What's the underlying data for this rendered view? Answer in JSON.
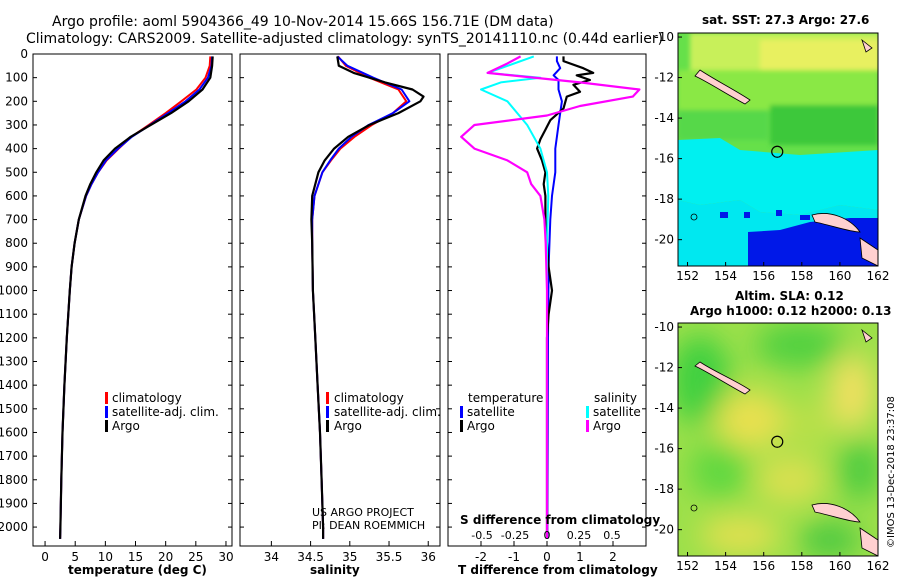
{
  "header": {
    "title_line1": "Argo profile: aoml 5904366_49 10-Nov-2014 15.66S 156.71E (DM data)",
    "title_line2": "Climatology: CARS2009. Satellite-adjusted climatology: synTS_20141110.nc (0.44d earlier)"
  },
  "credits": {
    "project": "US ARGO PROJECT",
    "pi": "PI: DEAN ROEMMICH",
    "stamp": "©IMOS 13-Dec-2018 23:37:08"
  },
  "colors": {
    "climatology": "#ff0000",
    "satellite": "#0000ff",
    "argo": "#000000",
    "argo_salinity": "#ff00ff",
    "satellite_salinity": "#00ffff"
  },
  "chart_data": [
    {
      "type": "line",
      "id": "temperature",
      "xlabel": "temperature (deg C)",
      "ylabel": "",
      "xlim": [
        -2,
        31
      ],
      "ylim": [
        2080,
        0
      ],
      "x_ticks": [
        0,
        5,
        10,
        15,
        20,
        25,
        30
      ],
      "y_ticks": [
        0,
        100,
        200,
        300,
        400,
        500,
        600,
        700,
        800,
        900,
        1000,
        1100,
        1200,
        1300,
        1400,
        1500,
        1600,
        1700,
        1800,
        1900,
        2000
      ],
      "legend": [
        "climatology",
        "satellite-adj. clim.",
        "Argo"
      ],
      "series": [
        {
          "name": "climatology",
          "depth": [
            10,
            50,
            100,
            150,
            200,
            250,
            300,
            350,
            400,
            450,
            500,
            550,
            600,
            700,
            800,
            900,
            1000,
            1200,
            1400,
            1600,
            1800,
            2000,
            2050
          ],
          "values": [
            27.4,
            27.3,
            26.6,
            25.1,
            22.6,
            20.0,
            17.2,
            14.3,
            12.2,
            10.2,
            8.8,
            7.7,
            6.8,
            5.6,
            4.9,
            4.4,
            4.1,
            3.6,
            3.2,
            2.9,
            2.7,
            2.55,
            2.5
          ]
        },
        {
          "name": "satellite-adj. clim.",
          "depth": [
            10,
            50,
            100,
            150,
            200,
            250,
            300,
            350,
            400,
            450,
            500,
            550,
            600,
            700,
            800,
            900,
            1000,
            1200,
            1400,
            1600,
            1800,
            2000,
            2050
          ],
          "values": [
            27.7,
            27.6,
            27.0,
            25.6,
            23.3,
            20.4,
            17.4,
            14.4,
            12.1,
            10.1,
            8.8,
            7.7,
            6.8,
            5.6,
            4.9,
            4.4,
            4.1,
            3.6,
            3.2,
            2.9,
            2.7,
            2.55,
            2.5
          ]
        },
        {
          "name": "Argo",
          "depth": [
            10,
            50,
            100,
            150,
            200,
            250,
            300,
            350,
            400,
            450,
            500,
            550,
            600,
            700,
            800,
            900,
            1000,
            1200,
            1400,
            1600,
            1800,
            2000,
            2050
          ],
          "values": [
            27.8,
            27.7,
            27.4,
            26.1,
            23.8,
            20.9,
            17.5,
            14.2,
            11.6,
            9.7,
            8.5,
            7.5,
            6.7,
            5.6,
            4.9,
            4.4,
            4.1,
            3.6,
            3.2,
            2.9,
            2.7,
            2.55,
            2.5
          ]
        }
      ]
    },
    {
      "type": "line",
      "id": "salinity",
      "xlabel": "salinity",
      "ylabel": "",
      "xlim": [
        33.6,
        36.15
      ],
      "ylim": [
        2080,
        0
      ],
      "x_ticks": [
        34,
        34.5,
        35,
        35.5,
        36
      ],
      "legend": [
        "climatology",
        "satellite-adj. clim.",
        "Argo"
      ],
      "series": [
        {
          "name": "climatology",
          "depth": [
            10,
            50,
            100,
            150,
            200,
            250,
            300,
            350,
            400,
            450,
            500,
            600,
            700,
            800,
            1000,
            1200,
            1400,
            1600,
            1800,
            2000,
            2050
          ],
          "values": [
            34.85,
            34.95,
            35.25,
            35.62,
            35.72,
            35.55,
            35.28,
            35.06,
            34.88,
            34.76,
            34.65,
            34.55,
            34.52,
            34.52,
            34.53,
            34.56,
            34.59,
            34.62,
            34.64,
            34.66,
            34.66
          ]
        },
        {
          "name": "satellite-adj. clim.",
          "depth": [
            10,
            50,
            100,
            150,
            200,
            250,
            300,
            350,
            400,
            450,
            500,
            600,
            700,
            800,
            1000,
            1200,
            1400,
            1600,
            1800,
            2000,
            2050
          ],
          "values": [
            34.84,
            34.97,
            35.3,
            35.66,
            35.76,
            35.55,
            35.24,
            35.02,
            34.86,
            34.75,
            34.65,
            34.55,
            34.52,
            34.52,
            34.53,
            34.56,
            34.59,
            34.62,
            34.64,
            34.66,
            34.66
          ]
        },
        {
          "name": "Argo",
          "depth": [
            10,
            50,
            80,
            120,
            150,
            180,
            200,
            250,
            300,
            350,
            400,
            450,
            500,
            600,
            700,
            800,
            1000,
            1200,
            1400,
            1600,
            1800,
            2000,
            2050
          ],
          "values": [
            34.84,
            34.86,
            35.05,
            35.45,
            35.8,
            35.94,
            35.9,
            35.62,
            35.25,
            34.98,
            34.8,
            34.68,
            34.6,
            34.52,
            34.51,
            34.52,
            34.53,
            34.56,
            34.59,
            34.62,
            34.64,
            34.66,
            34.66
          ]
        }
      ]
    },
    {
      "type": "line",
      "id": "difference",
      "xlabel": "T difference from climatology",
      "secondary_xlabel": "S difference from climatology",
      "xlim": [
        -3,
        3
      ],
      "ylim": [
        2080,
        0
      ],
      "x_ticks": [
        -2,
        -1,
        0,
        1,
        2
      ],
      "secondary_ticks": [
        "-0.5",
        "-0.25",
        "0",
        "0.25",
        "0.5"
      ],
      "legend_titles": [
        "temperature",
        "salinity"
      ],
      "legend_left": [
        "satellite",
        "Argo"
      ],
      "legend_right": [
        "satellite",
        "Argo"
      ],
      "series": [
        {
          "name": "temperature satellite",
          "depth": [
            10,
            30,
            60,
            90,
            110,
            150,
            200,
            300,
            400,
            500,
            600,
            700,
            900,
            1200,
            1600,
            2000,
            2050
          ],
          "values": [
            0.3,
            0.3,
            0.4,
            0.2,
            0.35,
            0.35,
            0.45,
            0.35,
            0.25,
            0.25,
            0.15,
            0.1,
            0.05,
            0.03,
            0.02,
            0.01,
            0.01
          ]
        },
        {
          "name": "temperature Argo",
          "depth": [
            10,
            30,
            60,
            80,
            90,
            110,
            130,
            160,
            180,
            230,
            280,
            320,
            360,
            400,
            450,
            500,
            550,
            600,
            700,
            800,
            900,
            950,
            1000,
            1100,
            1200,
            1300,
            1400,
            1500,
            1700,
            1900,
            2000,
            2050
          ],
          "values": [
            0.5,
            0.5,
            1.1,
            1.4,
            0.9,
            1.3,
            0.8,
            1.0,
            0.6,
            0.5,
            0.1,
            -0.05,
            -0.2,
            -0.3,
            -0.15,
            -0.05,
            -0.1,
            -0.05,
            -0.05,
            0.0,
            0.05,
            0.1,
            0.15,
            0.05,
            0.0,
            0.0,
            0.0,
            0.0,
            0.0,
            0.0,
            0.0,
            0.0
          ]
        },
        {
          "name": "salinity satellite",
          "depth": [
            10,
            40,
            80,
            100,
            120,
            150,
            200,
            300,
            400,
            500,
            600,
            800,
            1000,
            1400,
            2000,
            2050
          ],
          "values": [
            -0.1,
            -0.25,
            -0.45,
            -0.05,
            -0.35,
            -0.5,
            -0.3,
            -0.15,
            -0.05,
            0.0,
            0.01,
            0.0,
            0.0,
            0.0,
            0.0,
            0.0
          ]
        },
        {
          "name": "salinity Argo",
          "depth": [
            10,
            40,
            80,
            120,
            150,
            180,
            220,
            260,
            300,
            350,
            400,
            450,
            500,
            550,
            600,
            700,
            800,
            1000,
            1400,
            1800,
            2050
          ],
          "values": [
            -0.2,
            -0.3,
            -0.45,
            0.25,
            0.7,
            0.65,
            0.25,
            0.0,
            -0.55,
            -0.65,
            -0.55,
            -0.3,
            -0.15,
            -0.12,
            -0.05,
            -0.02,
            -0.01,
            0.0,
            0.0,
            0.0,
            0.0
          ]
        }
      ]
    },
    {
      "type": "heatmap",
      "id": "sst_map",
      "title": "sat. SST: 27.3 Argo: 27.6",
      "xlim": [
        151.5,
        162
      ],
      "ylim": [
        -21.3,
        -9.8
      ],
      "x_ticks": [
        152,
        154,
        156,
        158,
        160,
        162
      ],
      "y_ticks": [
        -10,
        -12,
        -14,
        -16,
        -18,
        -20
      ],
      "marker": {
        "lon": 156.71,
        "lat": -15.66
      }
    },
    {
      "type": "heatmap",
      "id": "sla_map",
      "title": "Altim. SLA: 0.12",
      "subtitle": "Argo h1000: 0.12 h2000: 0.13",
      "xlim": [
        151.5,
        162
      ],
      "ylim": [
        -21.3,
        -9.8
      ],
      "x_ticks": [
        152,
        154,
        156,
        158,
        160,
        162
      ],
      "y_ticks": [
        -10,
        -12,
        -14,
        -16,
        -18,
        -20
      ],
      "marker": {
        "lon": 156.71,
        "lat": -15.66
      }
    }
  ]
}
